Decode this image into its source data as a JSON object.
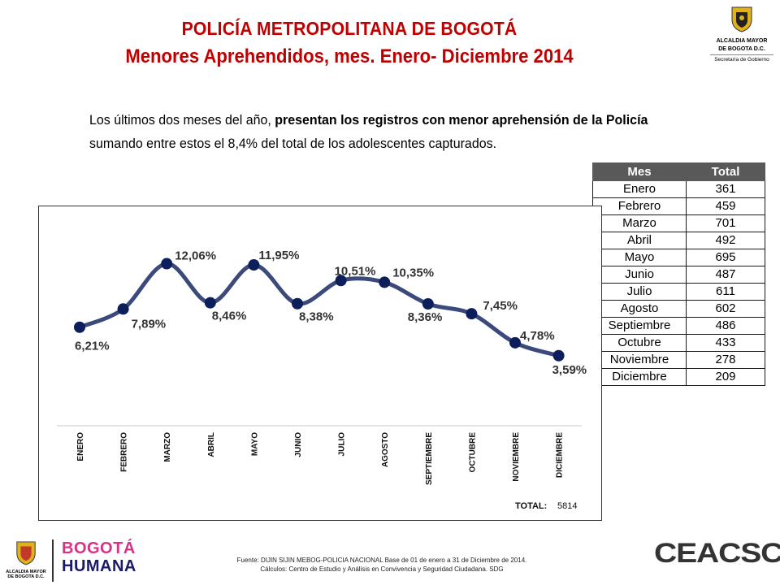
{
  "header": {
    "title": "POLICÍA METROPOLITANA DE BOGOTÁ",
    "subtitle": "Menores Aprehendidos, mes. Enero- Diciembre 2014"
  },
  "logo_top": {
    "line1": "ALCALDIA MAYOR",
    "line2": "DE BOGOTA D.C.",
    "line3": "Secretaría de Gobierno"
  },
  "intro": {
    "part1": "Los últimos dos meses del año, ",
    "part2_bold": "presentan los registros con menor aprehensión de la Policía",
    "part3": " sumando entre estos el 8,4% del total de los adolescentes capturados."
  },
  "table": {
    "headers": [
      "Mes",
      "Total"
    ],
    "rows": [
      [
        "Enero",
        "361"
      ],
      [
        "Febrero",
        "459"
      ],
      [
        "Marzo",
        "701"
      ],
      [
        "Abril",
        "492"
      ],
      [
        "Mayo",
        "695"
      ],
      [
        "Junio",
        "487"
      ],
      [
        "Julio",
        "611"
      ],
      [
        "Agosto",
        "602"
      ],
      [
        "Septiembre",
        "486"
      ],
      [
        "Octubre",
        "433"
      ],
      [
        "Noviembre",
        "278"
      ],
      [
        "Diciembre",
        "209"
      ]
    ]
  },
  "chart_data": {
    "type": "line",
    "categories": [
      "ENERO",
      "FEBRERO",
      "MARZO",
      "ABRIL",
      "MAYO",
      "JUNIO",
      "JULIO",
      "AGOSTO",
      "SEPTIEMBRE",
      "OCTUBRE",
      "NOVIEMBRE",
      "DICIEMBRE"
    ],
    "values": [
      6.21,
      7.89,
      12.06,
      8.46,
      11.95,
      8.38,
      10.51,
      10.35,
      8.36,
      7.45,
      4.78,
      3.59
    ],
    "data_labels": [
      "6,21%",
      "7,89%",
      "12,06%",
      "8,46%",
      "11,95%",
      "8,38%",
      "10,51%",
      "10,35%",
      "8,36%",
      "7,45%",
      "4,78%",
      "3,59%"
    ],
    "total_label": "TOTAL:",
    "total_value": "5814",
    "line_color": "#3b4a7a",
    "marker_color": "#0c1f5c",
    "title": "",
    "xlabel": "",
    "ylabel": "",
    "ylim": [
      2,
      13
    ],
    "grid": false,
    "legend": "none"
  },
  "footer": {
    "line1": "Fuente: DIJIN SIJIN MEBOG-POLICIA NACIONAL Base de 01 de enero a 31 de Diciembre de 2014.",
    "line2": "Cálculos: Centro de Estudio y Análisis en Convivencia y Seguridad Ciudadana. SDG"
  },
  "logos": {
    "bottom_left_line1": "ALCALDIA MAYOR",
    "bottom_left_line2": "DE BOGOTA D.C.",
    "bogota_line1": "BOGOTÁ",
    "bogota_line2": "HUMANA",
    "ceacsc": "CEACSC"
  }
}
